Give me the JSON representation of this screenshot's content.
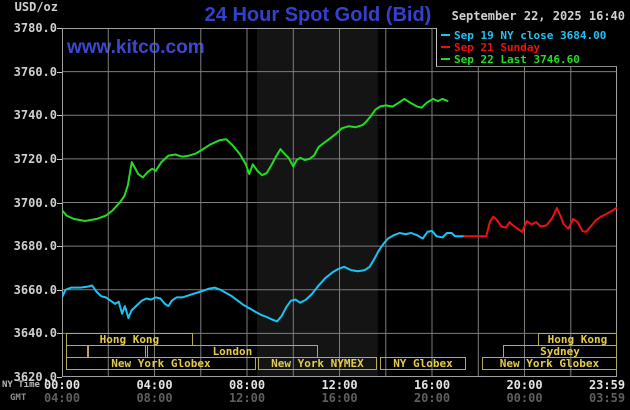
{
  "header": {
    "units": "USD/oz",
    "title": "24 Hour Spot Gold (Bid)",
    "watermark": "www.kitco.com",
    "datetime": "September 22, 2025 16:40"
  },
  "legend": [
    {
      "label": "Sep 19 NY close 3684.00",
      "color": "#1fc3f3"
    },
    {
      "label": "Sep 21 Sunday",
      "color": "#ee1111"
    },
    {
      "label": "Sep 22 Last 3746.60",
      "color": "#22dd22"
    }
  ],
  "axes": {
    "x_ny": {
      "name": "NY Time",
      "labels": [
        "00:00",
        "04:00",
        "08:00",
        "12:00",
        "16:00",
        "20:00",
        "23:59"
      ]
    },
    "x_gmt": {
      "name": "GMT",
      "labels": [
        "04:00",
        "08:00",
        "12:00",
        "16:00",
        "20:00",
        "00:00",
        "03:59"
      ]
    },
    "y": {
      "labels": [
        "3780.0",
        "3760.0",
        "3740.0",
        "3720.0",
        "3700.0",
        "3680.0",
        "3660.0",
        "3640.0",
        "3620.0"
      ]
    }
  },
  "colors": {
    "background": "#000000",
    "title_blue": "#3342cc",
    "grid": "#7d7d7d",
    "plot_border": "#a0a0a0",
    "nymex_band": "#141414",
    "session_border": "#b7a95c",
    "session_text": "#e4cc4e",
    "ny_axis_text": "#e4e4e4",
    "gmt_axis_text": "#5f5f5f",
    "y_label_text": "#d0d0d0",
    "date_text": "#d0d0d0",
    "cyan": "#1fc3f3",
    "red": "#ee1111",
    "green": "#22dd22"
  },
  "chart_data": {
    "type": "line",
    "title": "24 Hour Spot Gold (Bid)",
    "xlabel": "NY Time (hours 0-24)",
    "ylabel": "USD/oz",
    "xlim": [
      0,
      24
    ],
    "ylim": [
      3620,
      3780
    ],
    "x_grid_step_hours": 2,
    "y_grid_step": 20,
    "grid": true,
    "legend_position": "top-right",
    "nymex_floor_band_hours": [
      8.43,
      13.66
    ],
    "series": [
      {
        "name": "Sep 19 NY close 3684.00",
        "color": "#1fc3f3",
        "points": [
          [
            0,
            3656.5
          ],
          [
            0.15,
            3660
          ],
          [
            0.4,
            3661
          ],
          [
            0.8,
            3661
          ],
          [
            1.15,
            3661.5
          ],
          [
            1.3,
            3662
          ],
          [
            1.5,
            3659
          ],
          [
            1.7,
            3657
          ],
          [
            1.9,
            3656.5
          ],
          [
            2.1,
            3655
          ],
          [
            2.3,
            3653.5
          ],
          [
            2.45,
            3654.5
          ],
          [
            2.6,
            3649
          ],
          [
            2.72,
            3652.5
          ],
          [
            2.87,
            3647
          ],
          [
            3,
            3650.5
          ],
          [
            3.2,
            3652.5
          ],
          [
            3.45,
            3655
          ],
          [
            3.65,
            3656
          ],
          [
            3.85,
            3655.5
          ],
          [
            4.05,
            3656.5
          ],
          [
            4.25,
            3656
          ],
          [
            4.45,
            3653.5
          ],
          [
            4.6,
            3652.5
          ],
          [
            4.75,
            3655
          ],
          [
            4.95,
            3656.5
          ],
          [
            5.2,
            3656.5
          ],
          [
            5.5,
            3657.5
          ],
          [
            5.8,
            3658.5
          ],
          [
            6.1,
            3659.5
          ],
          [
            6.35,
            3660.5
          ],
          [
            6.6,
            3661
          ],
          [
            6.85,
            3660
          ],
          [
            7.1,
            3658.5
          ],
          [
            7.35,
            3657
          ],
          [
            7.6,
            3655
          ],
          [
            7.85,
            3653
          ],
          [
            8.1,
            3651.5
          ],
          [
            8.35,
            3650
          ],
          [
            8.6,
            3648.5
          ],
          [
            8.85,
            3647.5
          ],
          [
            9.05,
            3646.5
          ],
          [
            9.3,
            3645.5
          ],
          [
            9.5,
            3648
          ],
          [
            9.7,
            3652
          ],
          [
            9.9,
            3655
          ],
          [
            10.1,
            3655.5
          ],
          [
            10.3,
            3654
          ],
          [
            10.55,
            3655.5
          ],
          [
            10.8,
            3658
          ],
          [
            11.1,
            3662
          ],
          [
            11.4,
            3665.5
          ],
          [
            11.7,
            3668
          ],
          [
            11.95,
            3669.5
          ],
          [
            12.2,
            3670.5
          ],
          [
            12.5,
            3669
          ],
          [
            12.8,
            3668.5
          ],
          [
            13.1,
            3669
          ],
          [
            13.3,
            3670.5
          ],
          [
            13.5,
            3674
          ],
          [
            13.7,
            3678
          ],
          [
            13.9,
            3681
          ],
          [
            14.1,
            3683.5
          ],
          [
            14.35,
            3685
          ],
          [
            14.6,
            3686
          ],
          [
            14.85,
            3685.5
          ],
          [
            15.1,
            3686
          ],
          [
            15.35,
            3685
          ],
          [
            15.6,
            3683.5
          ],
          [
            15.8,
            3686.5
          ],
          [
            16,
            3687
          ],
          [
            16.2,
            3684.5
          ],
          [
            16.45,
            3684
          ],
          [
            16.65,
            3686
          ],
          [
            16.85,
            3686
          ],
          [
            17,
            3684.5
          ],
          [
            17.4,
            3684.5
          ]
        ]
      },
      {
        "name": "Sep 21 Sunday",
        "color": "#ee1111",
        "points": [
          [
            17.4,
            3684.5
          ],
          [
            18.35,
            3684.5
          ],
          [
            18.5,
            3691
          ],
          [
            18.65,
            3693.5
          ],
          [
            18.8,
            3692
          ],
          [
            19,
            3689
          ],
          [
            19.2,
            3688.5
          ],
          [
            19.35,
            3691
          ],
          [
            19.5,
            3689.5
          ],
          [
            19.7,
            3688
          ],
          [
            19.9,
            3686.5
          ],
          [
            20.1,
            3691.5
          ],
          [
            20.3,
            3690
          ],
          [
            20.5,
            3691
          ],
          [
            20.7,
            3689
          ],
          [
            20.95,
            3689.5
          ],
          [
            21.2,
            3693
          ],
          [
            21.4,
            3697.5
          ],
          [
            21.55,
            3694
          ],
          [
            21.7,
            3690
          ],
          [
            21.9,
            3688
          ],
          [
            22.1,
            3692.5
          ],
          [
            22.3,
            3691
          ],
          [
            22.5,
            3687
          ],
          [
            22.65,
            3686.5
          ],
          [
            22.9,
            3689.5
          ],
          [
            23.1,
            3692
          ],
          [
            23.3,
            3693.5
          ],
          [
            23.5,
            3694.5
          ],
          [
            23.75,
            3696
          ],
          [
            23.98,
            3697.5
          ]
        ]
      },
      {
        "name": "Sep 22 Last 3746.60",
        "color": "#22dd22",
        "points": [
          [
            0,
            3696.5
          ],
          [
            0.2,
            3694
          ],
          [
            0.5,
            3692.5
          ],
          [
            1,
            3691.5
          ],
          [
            1.5,
            3692.5
          ],
          [
            1.9,
            3694
          ],
          [
            2.2,
            3696.5
          ],
          [
            2.5,
            3700
          ],
          [
            2.7,
            3703
          ],
          [
            2.85,
            3708
          ],
          [
            3.02,
            3718.5
          ],
          [
            3.15,
            3716
          ],
          [
            3.3,
            3713
          ],
          [
            3.5,
            3711.5
          ],
          [
            3.7,
            3714
          ],
          [
            3.9,
            3715.5
          ],
          [
            4.05,
            3714.5
          ],
          [
            4.3,
            3718.5
          ],
          [
            4.6,
            3721.5
          ],
          [
            4.9,
            3722
          ],
          [
            5.2,
            3721
          ],
          [
            5.5,
            3721.5
          ],
          [
            5.8,
            3722.5
          ],
          [
            6.1,
            3724.5
          ],
          [
            6.4,
            3726.5
          ],
          [
            6.8,
            3728.5
          ],
          [
            7.1,
            3729
          ],
          [
            7.4,
            3726
          ],
          [
            7.7,
            3722
          ],
          [
            7.95,
            3717.5
          ],
          [
            8.1,
            3713
          ],
          [
            8.25,
            3717.5
          ],
          [
            8.45,
            3714.5
          ],
          [
            8.65,
            3712.5
          ],
          [
            8.85,
            3713.5
          ],
          [
            9.05,
            3717
          ],
          [
            9.25,
            3721
          ],
          [
            9.45,
            3724.5
          ],
          [
            9.6,
            3722.5
          ],
          [
            9.8,
            3720.5
          ],
          [
            10,
            3716.5
          ],
          [
            10.15,
            3719.5
          ],
          [
            10.3,
            3720.5
          ],
          [
            10.5,
            3719.5
          ],
          [
            10.7,
            3720
          ],
          [
            10.9,
            3721.5
          ],
          [
            11.1,
            3725.5
          ],
          [
            11.35,
            3727.5
          ],
          [
            11.6,
            3729.5
          ],
          [
            11.85,
            3731.5
          ],
          [
            12.1,
            3734
          ],
          [
            12.4,
            3735
          ],
          [
            12.7,
            3734.5
          ],
          [
            13,
            3735.5
          ],
          [
            13.15,
            3737
          ],
          [
            13.35,
            3739.5
          ],
          [
            13.55,
            3742.5
          ],
          [
            13.75,
            3744
          ],
          [
            14,
            3744.5
          ],
          [
            14.3,
            3744
          ],
          [
            14.6,
            3746
          ],
          [
            14.8,
            3747.5
          ],
          [
            15.1,
            3745.5
          ],
          [
            15.35,
            3744
          ],
          [
            15.55,
            3743.5
          ],
          [
            15.8,
            3746
          ],
          [
            16.05,
            3747.5
          ],
          [
            16.25,
            3746.5
          ],
          [
            16.45,
            3747.5
          ],
          [
            16.67,
            3746.6
          ]
        ]
      }
    ],
    "sessions": [
      {
        "row": 1,
        "label": "Hong Kong",
        "start": 0.17,
        "end": 5.66
      },
      {
        "row": 1,
        "label": "Hong Kong",
        "start": 20.58,
        "end": 24
      },
      {
        "row": 2,
        "label": "",
        "start": 0.17,
        "end": 1.12
      },
      {
        "row": 2,
        "label": "",
        "start": 1.12,
        "end": 3.63
      },
      {
        "row": 2,
        "label": "London",
        "start": 3.67,
        "end": 11.07
      },
      {
        "row": 2,
        "label": "Sydney",
        "start": 19.07,
        "end": 24
      },
      {
        "row": 3,
        "label": "New York Globex",
        "start": 0.17,
        "end": 8.39
      },
      {
        "row": 3,
        "label": "New York NYMEX",
        "start": 8.47,
        "end": 13.62
      },
      {
        "row": 3,
        "label": "NY Globex",
        "start": 13.75,
        "end": 17.47
      },
      {
        "row": 3,
        "label": "New York Globex",
        "start": 18.16,
        "end": 24
      }
    ]
  }
}
